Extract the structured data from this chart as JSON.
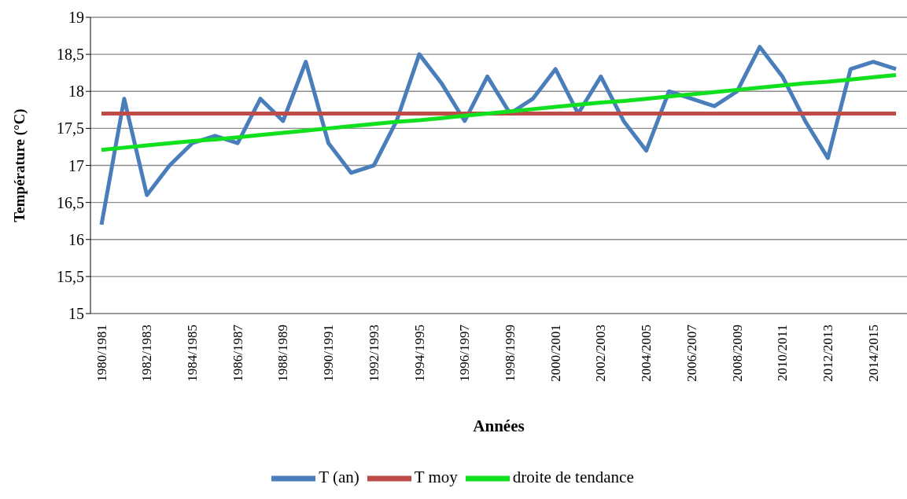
{
  "chart_data": {
    "type": "line",
    "xlabel": "Années",
    "ylabel": "Température (°C)",
    "categories": [
      "1980/1981",
      null,
      "1982/1983",
      null,
      "1984/1985",
      null,
      "1986/1987",
      null,
      "1988/1989",
      null,
      "1990/1991",
      null,
      "1992/1993",
      null,
      "1994/1995",
      null,
      "1996/1997",
      null,
      "1998/1999",
      null,
      "2000/2001",
      null,
      "2002/2003",
      null,
      "2004/2005",
      null,
      "2006/2007",
      null,
      "2008/2009",
      null,
      "2010/2011",
      null,
      "2012/2013",
      null,
      "2014/2015",
      null
    ],
    "series": [
      {
        "name": "T (an)",
        "color": "#4a7ebb",
        "values": [
          16.2,
          17.9,
          16.6,
          17.0,
          17.3,
          17.4,
          17.3,
          17.9,
          17.6,
          18.4,
          17.3,
          16.9,
          17.0,
          17.6,
          18.5,
          18.1,
          17.6,
          18.2,
          17.7,
          17.9,
          18.3,
          17.7,
          18.2,
          17.6,
          17.2,
          18.0,
          17.9,
          17.8,
          18.0,
          18.6,
          18.2,
          17.6,
          17.1,
          18.3,
          18.4,
          18.3
        ]
      },
      {
        "name": "T moy",
        "color": "#be4b48",
        "values": [
          17.7,
          17.7,
          17.7,
          17.7,
          17.7,
          17.7,
          17.7,
          17.7,
          17.7,
          17.7,
          17.7,
          17.7,
          17.7,
          17.7,
          17.7,
          17.7,
          17.7,
          17.7,
          17.7,
          17.7,
          17.7,
          17.7,
          17.7,
          17.7,
          17.7,
          17.7,
          17.7,
          17.7,
          17.7,
          17.7,
          17.7,
          17.7,
          17.7,
          17.7,
          17.7,
          17.7
        ]
      },
      {
        "name": "droite de tendance",
        "color": "#10e01e",
        "values": [
          17.21,
          17.24,
          17.27,
          17.3,
          17.33,
          17.35,
          17.38,
          17.41,
          17.44,
          17.47,
          17.5,
          17.53,
          17.56,
          17.59,
          17.61,
          17.64,
          17.67,
          17.7,
          17.73,
          17.76,
          17.79,
          17.82,
          17.85,
          17.87,
          17.9,
          17.93,
          17.96,
          17.99,
          18.02,
          18.05,
          18.08,
          18.11,
          18.13,
          18.16,
          18.19,
          18.22
        ]
      }
    ],
    "ylim": [
      15,
      19
    ],
    "yticks": [
      15,
      {
        "value": 15.5,
        "label": "15,5"
      },
      16,
      {
        "value": 16.5,
        "label": "16,5"
      },
      17,
      {
        "value": 17.5,
        "label": "17,5"
      },
      18,
      {
        "value": 18.5,
        "label": "18,5"
      },
      19
    ],
    "grid": "y",
    "legend": "bottom",
    "line_style": "solid"
  }
}
